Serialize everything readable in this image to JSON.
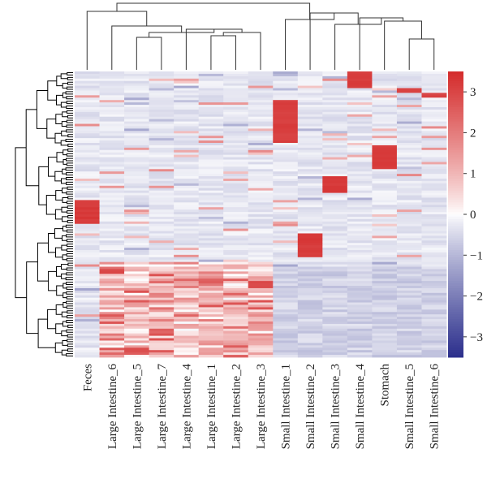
{
  "chart_data": {
    "type": "heatmap",
    "title": "",
    "xlabel": "",
    "ylabel": "",
    "columns": [
      "Feces",
      "Large Intestine_6",
      "Large Intestine_5",
      "Large Intestine_7",
      "Large Intestine_4",
      "Large Intestine_1",
      "Large Intestine_2",
      "Large Intestine_3",
      "Small Intestine_1",
      "Small Intestine_2",
      "Small Intestine_3",
      "Small Intestine_4",
      "Stomach",
      "Small Intestine_5",
      "Small Intestine_6"
    ],
    "row_count": 120,
    "value_range": [
      -3.5,
      3.5
    ],
    "colorbar": {
      "ticks": [
        3,
        2,
        1,
        0,
        -1,
        -2,
        -3
      ],
      "tick_labels": [
        "3",
        "2",
        "1",
        "0",
        "−1",
        "−2",
        "−3"
      ],
      "low_color": "#2b2f8c",
      "mid_color": "#ffffff",
      "high_color": "#d42b2b"
    },
    "background_value": -0.3,
    "blocks": [
      {
        "column": "Feces",
        "row_start": 54,
        "row_end": 64,
        "value": 3.3
      },
      {
        "column": "Small Intestine_1",
        "row_start": 12,
        "row_end": 30,
        "value": 3.2
      },
      {
        "column": "Small Intestine_2",
        "row_start": 68,
        "row_end": 78,
        "value": 3.3
      },
      {
        "column": "Small Intestine_3",
        "row_start": 44,
        "row_end": 51,
        "value": 3.3
      },
      {
        "column": "Small Intestine_4",
        "row_start": 0,
        "row_end": 7,
        "value": 3.3
      },
      {
        "column": "Stomach",
        "row_start": 31,
        "row_end": 41,
        "value": 3.3
      },
      {
        "column": "Small Intestine_5",
        "row_start": 7,
        "row_end": 9,
        "value": 3.1
      },
      {
        "column": "Small Intestine_6",
        "row_start": 9,
        "row_end": 11,
        "value": 3.1
      },
      {
        "column": "Large Intestine_6",
        "row_start": 83,
        "row_end": 85,
        "value": 3.0
      },
      {
        "column": "Large Intestine_3",
        "row_start": 88,
        "row_end": 91,
        "value": 3.0
      },
      {
        "column": "Large Intestine_5",
        "row_start": 116,
        "row_end": 118,
        "value": 3.0
      },
      {
        "column": "Large Intestine_1",
        "row_start": 87,
        "row_end": 89,
        "value": 2.6
      }
    ],
    "dendrograms": {
      "column_tree": true,
      "row_tree": true
    }
  }
}
